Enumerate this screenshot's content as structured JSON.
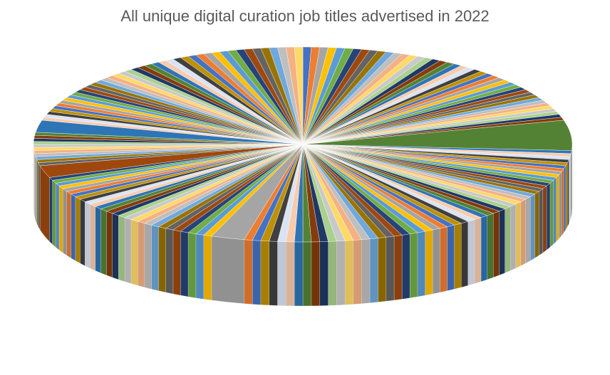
{
  "chart_data": {
    "type": "pie3d",
    "title": "All unique digital curation job titles advertised in 2022",
    "values": [
      1,
      1,
      1,
      1,
      1,
      1,
      1,
      1,
      1,
      1,
      1,
      1,
      1,
      1,
      1,
      1,
      1,
      1,
      1,
      1,
      1,
      1,
      1,
      1,
      1,
      1,
      1,
      1,
      1,
      1,
      1,
      1,
      1,
      1,
      1,
      1,
      1,
      1,
      1,
      1,
      1,
      1,
      10,
      1,
      1,
      1,
      1,
      1,
      1,
      1,
      1,
      1,
      1,
      1,
      1,
      1,
      1,
      1,
      1,
      1,
      1,
      1,
      1,
      1,
      1,
      1,
      1,
      1,
      1,
      1,
      1,
      1,
      1,
      1,
      1,
      1,
      1,
      1,
      1,
      1,
      1,
      1,
      1,
      1,
      1,
      1,
      1,
      1,
      1,
      1,
      1,
      1,
      1,
      1,
      1,
      1,
      1,
      1,
      4,
      1,
      1,
      1,
      1,
      1,
      1,
      1,
      1,
      1,
      1,
      1,
      1,
      1,
      1,
      1,
      1,
      1,
      1,
      1,
      1,
      1,
      1,
      1,
      1,
      1,
      1,
      1,
      1,
      4,
      1,
      1,
      1,
      1,
      1,
      1,
      1,
      1,
      1,
      1,
      1,
      4,
      1,
      1,
      1,
      1,
      1,
      1,
      1,
      1,
      1,
      1,
      1,
      1,
      1,
      1,
      1,
      1,
      1,
      1,
      1,
      1,
      1,
      1,
      1,
      1,
      1,
      1,
      1,
      1,
      1,
      1,
      1,
      1,
      1,
      1,
      1,
      1,
      1,
      1,
      1,
      1,
      1,
      1
    ],
    "palette": [
      "#4472c4",
      "#ed7d31",
      "#a5a5a5",
      "#ffc000",
      "#5b9bd5",
      "#70ad47",
      "#264478",
      "#9e480e",
      "#636363",
      "#997300",
      "#6fa8dc",
      "#bfbfbf",
      "#f4b183",
      "#ffd966",
      "#c9c9c9",
      "#a9d18e",
      "#1f3864",
      "#843c0c",
      "#548235",
      "#2e75b6",
      "#f8cbad",
      "#dae3f3",
      "#404040",
      "#bf9000"
    ]
  }
}
